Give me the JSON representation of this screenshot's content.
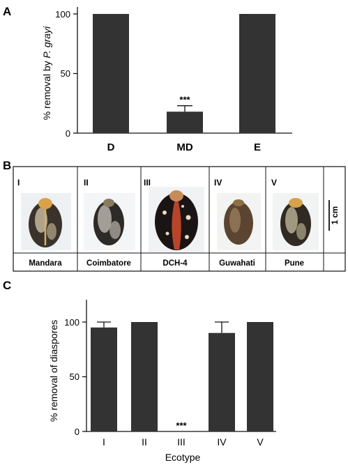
{
  "panels": {
    "a": {
      "letter": "A",
      "ylabel_prefix": "% removal by ",
      "ylabel_species": "P. grayi",
      "yticks": [
        "0",
        "50",
        "100"
      ],
      "chart_data": {
        "type": "bar",
        "categories": [
          "D",
          "MD",
          "E"
        ],
        "values": [
          100,
          18,
          100
        ],
        "errors": [
          0,
          5,
          0
        ],
        "significance": [
          "",
          "***",
          ""
        ],
        "ylim": [
          0,
          110
        ],
        "xlabel": "",
        "ylabel": "% removal by P. grayi"
      }
    },
    "b": {
      "letter": "B",
      "seeds": [
        {
          "numeral": "I",
          "name": "Mandara"
        },
        {
          "numeral": "II",
          "name": "Coimbatore"
        },
        {
          "numeral": "III",
          "name": "DCH-4"
        },
        {
          "numeral": "IV",
          "name": "Guwahati"
        },
        {
          "numeral": "V",
          "name": "Pune"
        }
      ],
      "scale_label": "1 cm"
    },
    "c": {
      "letter": "C",
      "ylabel": "% removal of diaspores",
      "xlabel": "Ecotype",
      "yticks": [
        "0",
        "50",
        "100"
      ],
      "chart_data": {
        "type": "bar",
        "categories": [
          "I",
          "II",
          "III",
          "IV",
          "V"
        ],
        "values": [
          95,
          100,
          0,
          90,
          100
        ],
        "errors": [
          5,
          0,
          0,
          10,
          0
        ],
        "significance": [
          "",
          "",
          "***",
          "",
          ""
        ],
        "ylim": [
          0,
          110
        ],
        "xlabel": "Ecotype",
        "ylabel": "% removal of diaspores"
      }
    }
  },
  "colors": {
    "bar": "#333333",
    "axis": "#111111",
    "seed_dark": "#2a2420",
    "seed_cream": "#d9cdb4",
    "caruncle": "#d7a24a",
    "dch4_body": "#1a1414",
    "dch4_stripe": "#b8452a"
  }
}
